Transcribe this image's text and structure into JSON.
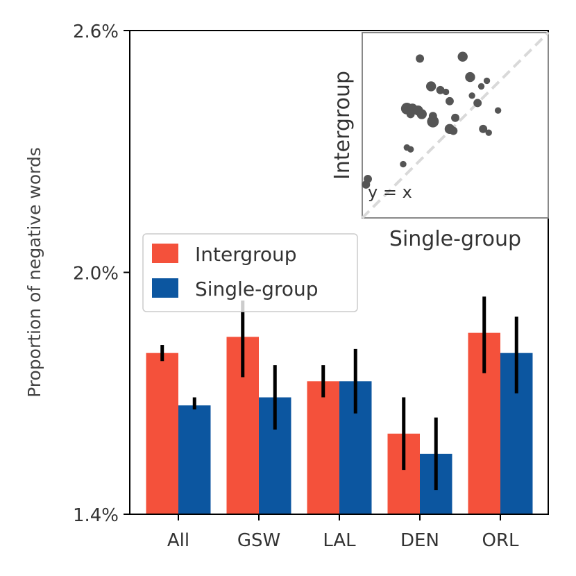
{
  "chart_data": [
    {
      "type": "bar",
      "title": "",
      "xlabel": "",
      "ylabel": "Proportion of negative words",
      "ylim": [
        1.4,
        2.6
      ],
      "yticks": [
        1.4,
        2.0,
        2.6
      ],
      "ytick_labels": [
        "1.4%",
        "2.0%",
        "2.6%"
      ],
      "categories": [
        "All",
        "GSW",
        "LAL",
        "DEN",
        "ORL"
      ],
      "series": [
        {
          "name": "Intergroup",
          "color": "#f4513b",
          "values": [
            1.8,
            1.84,
            1.73,
            1.6,
            1.85
          ],
          "err_low": [
            1.78,
            1.74,
            1.69,
            1.51,
            1.75
          ],
          "err_high": [
            1.82,
            1.93,
            1.77,
            1.69,
            1.94
          ]
        },
        {
          "name": "Single-group",
          "color": "#0c56a0",
          "values": [
            1.67,
            1.69,
            1.73,
            1.55,
            1.8
          ],
          "err_low": [
            1.66,
            1.61,
            1.65,
            1.46,
            1.7
          ],
          "err_high": [
            1.69,
            1.77,
            1.81,
            1.64,
            1.89
          ]
        }
      ],
      "legend": {
        "placement": "center-left"
      },
      "grid": false
    },
    {
      "type": "scatter",
      "xlabel": "Single-group",
      "ylabel": "Intergroup",
      "annotation": "y = x",
      "reference_line": "y = x",
      "ticks": false,
      "point_color": "#555555",
      "points": [
        {
          "x": 0.31,
          "y": 0.86,
          "s": 3
        },
        {
          "x": 0.54,
          "y": 0.87,
          "s": 4
        },
        {
          "x": 0.58,
          "y": 0.76,
          "s": 4
        },
        {
          "x": 0.67,
          "y": 0.74,
          "s": 2
        },
        {
          "x": 0.64,
          "y": 0.71,
          "s": 2
        },
        {
          "x": 0.37,
          "y": 0.71,
          "s": 4
        },
        {
          "x": 0.42,
          "y": 0.69,
          "s": 3
        },
        {
          "x": 0.45,
          "y": 0.68,
          "s": 2
        },
        {
          "x": 0.59,
          "y": 0.66,
          "s": 2
        },
        {
          "x": 0.47,
          "y": 0.63,
          "s": 3
        },
        {
          "x": 0.62,
          "y": 0.62,
          "s": 3
        },
        {
          "x": 0.24,
          "y": 0.59,
          "s": 5
        },
        {
          "x": 0.27,
          "y": 0.59,
          "s": 4
        },
        {
          "x": 0.3,
          "y": 0.58,
          "s": 4
        },
        {
          "x": 0.32,
          "y": 0.56,
          "s": 4
        },
        {
          "x": 0.26,
          "y": 0.56,
          "s": 3
        },
        {
          "x": 0.38,
          "y": 0.55,
          "s": 3
        },
        {
          "x": 0.5,
          "y": 0.54,
          "s": 3
        },
        {
          "x": 0.38,
          "y": 0.52,
          "s": 5
        },
        {
          "x": 0.73,
          "y": 0.58,
          "s": 2
        },
        {
          "x": 0.47,
          "y": 0.48,
          "s": 4
        },
        {
          "x": 0.49,
          "y": 0.47,
          "s": 3
        },
        {
          "x": 0.65,
          "y": 0.48,
          "s": 3
        },
        {
          "x": 0.68,
          "y": 0.46,
          "s": 2
        },
        {
          "x": 0.24,
          "y": 0.38,
          "s": 2
        },
        {
          "x": 0.26,
          "y": 0.37,
          "s": 2
        },
        {
          "x": 0.22,
          "y": 0.29,
          "s": 2
        },
        {
          "x": 0.03,
          "y": 0.21,
          "s": 3
        },
        {
          "x": 0.02,
          "y": 0.18,
          "s": 3
        }
      ]
    }
  ]
}
